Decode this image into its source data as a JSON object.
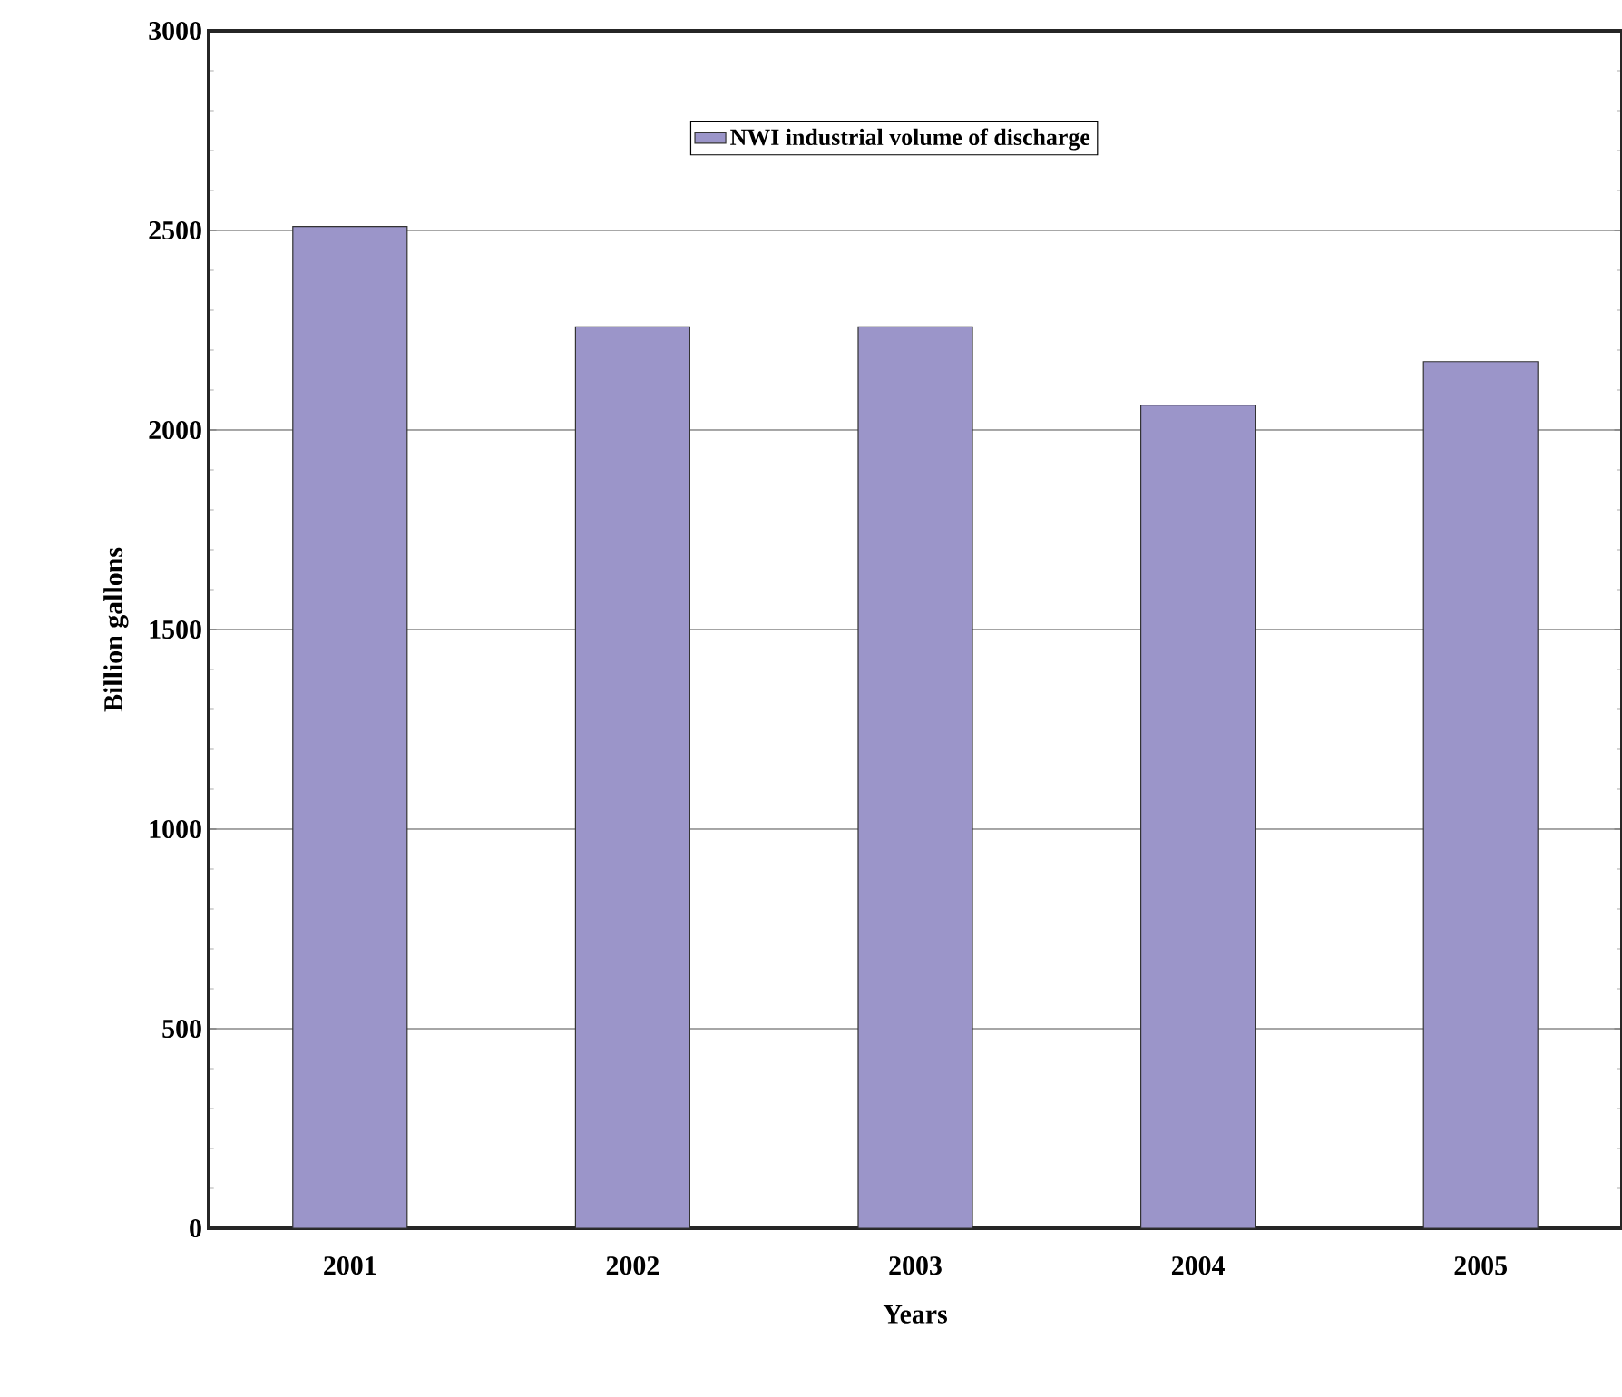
{
  "chart_data": {
    "type": "bar",
    "xlabel": "Years",
    "ylabel": "Billion gallons",
    "categories": [
      "2001",
      "2002",
      "2003",
      "2004",
      "2005"
    ],
    "series": [
      {
        "name": "NWI industrial volume of discharge",
        "color": "#9b95c9",
        "values": [
          2510,
          2258,
          2258,
          2062,
          2171
        ]
      }
    ],
    "ylim": [
      0,
      3000
    ],
    "yticks": [
      0,
      500,
      1000,
      1500,
      2000,
      2500,
      3000
    ],
    "grid": "y",
    "legend": "top"
  }
}
